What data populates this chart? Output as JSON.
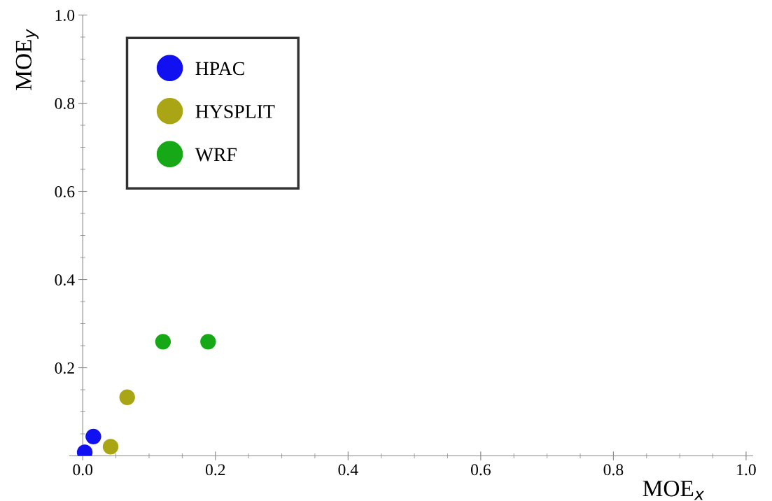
{
  "chart_data": {
    "type": "scatter",
    "xlabel": "MOE$_{x}$",
    "ylabel": "MOE$_{y}$",
    "series": [
      {
        "name": "HPAC",
        "color": "#1010f0",
        "x": [
          0.003,
          0.016
        ],
        "values": [
          0.008,
          0.044
        ]
      },
      {
        "name": "HYSPLIT",
        "color": "#aaa514",
        "x": [
          0.042,
          0.067
        ],
        "values": [
          0.021,
          0.133
        ]
      },
      {
        "name": "WRF",
        "color": "#16a816",
        "x": [
          0.121,
          0.189
        ],
        "values": [
          0.259,
          0.259
        ]
      }
    ],
    "xlim": [
      -0.02,
      1.01
    ],
    "ylim": [
      0,
      1.0
    ],
    "xticks": [
      {
        "value": 0,
        "label": "0.0"
      },
      0.2,
      0.4,
      0.6,
      0.8,
      {
        "value": 1.0,
        "label": "1.0"
      },
      {
        "value": 0.05,
        "label": null
      },
      {
        "value": 0.1,
        "label": null
      },
      {
        "value": 0.15,
        "label": null
      },
      {
        "value": 0.25,
        "label": null
      },
      {
        "value": 0.3,
        "label": null
      },
      {
        "value": 0.35,
        "label": null
      },
      {
        "value": 0.45,
        "label": null
      },
      {
        "value": 0.5,
        "label": null
      },
      {
        "value": 0.55,
        "label": null
      },
      {
        "value": 0.65,
        "label": null
      },
      {
        "value": 0.7,
        "label": null
      },
      {
        "value": 0.75,
        "label": null
      },
      {
        "value": 0.85,
        "label": null
      },
      {
        "value": 0.9,
        "label": null
      },
      {
        "value": 0.95,
        "label": null
      }
    ],
    "yticks": [
      0.2,
      0.4,
      0.6,
      0.8,
      {
        "value": 1.0,
        "label": "1.0"
      },
      {
        "value": 0.05,
        "label": null
      },
      {
        "value": 0.1,
        "label": null
      },
      {
        "value": 0.15,
        "label": null
      },
      {
        "value": 0.25,
        "label": null
      },
      {
        "value": 0.3,
        "label": null
      },
      {
        "value": 0.35,
        "label": null
      },
      {
        "value": 0.45,
        "label": null
      },
      {
        "value": 0.5,
        "label": null
      },
      {
        "value": 0.55,
        "label": null
      },
      {
        "value": 0.65,
        "label": null
      },
      {
        "value": 0.7,
        "label": null
      },
      {
        "value": 0.75,
        "label": null
      },
      {
        "value": 0.85,
        "label": null
      },
      {
        "value": 0.9,
        "label": null
      },
      {
        "value": 0.95,
        "label": null
      }
    ],
    "marker": "circle",
    "legend": "top left",
    "grid": false
  }
}
